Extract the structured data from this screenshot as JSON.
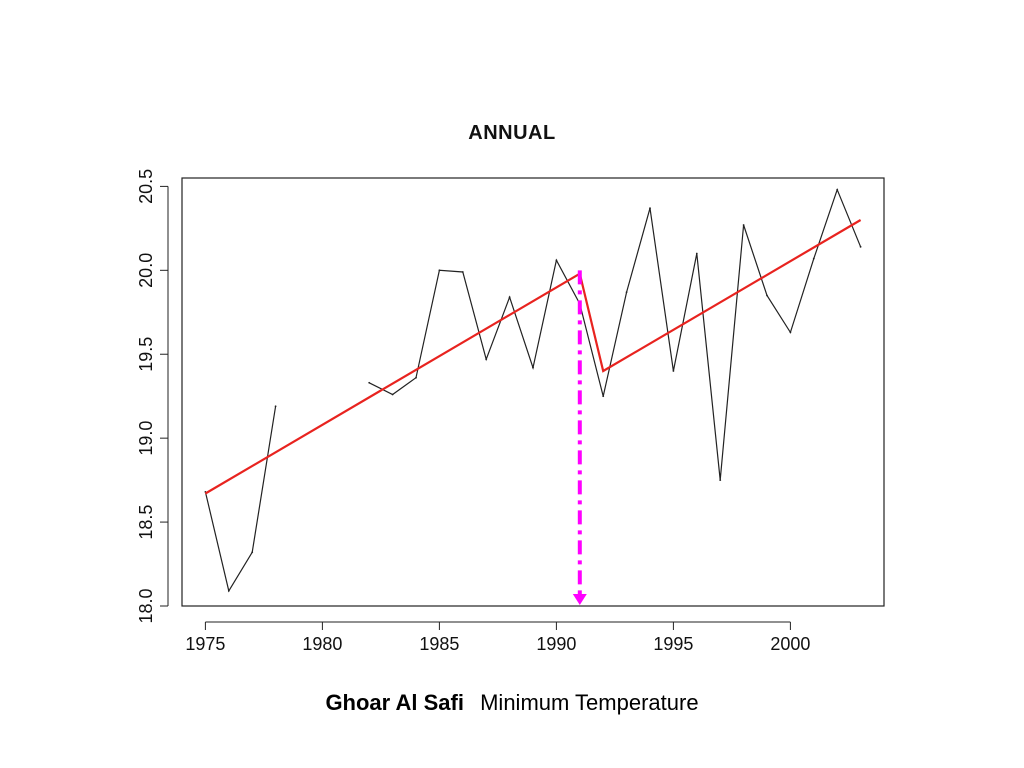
{
  "caption": {
    "station": "Ghoar Al Safi",
    "variable": "Minimum Temperature"
  },
  "chart_data": {
    "type": "line",
    "title": "ANNUAL",
    "xlabel": "",
    "ylabel": "",
    "xlim": [
      1974,
      2004
    ],
    "ylim": [
      18.0,
      20.55
    ],
    "xticks": [
      1975,
      1980,
      1985,
      1990,
      1995,
      2000
    ],
    "yticks": [
      18.0,
      18.5,
      19.0,
      19.5,
      20.0,
      20.5
    ],
    "ytick_labels": [
      "18.0",
      "18.5",
      "19.0",
      "19.5",
      "20.0",
      "20.5"
    ],
    "grid": false,
    "series": [
      {
        "kind": "observed",
        "color": "#222222",
        "x": [
          1975,
          1976,
          1977,
          1978,
          1979,
          1980,
          1981,
          1982,
          1983,
          1984,
          1985,
          1986,
          1987,
          1988,
          1989,
          1990,
          1991,
          1992,
          1993,
          1994,
          1995,
          1996,
          1997,
          1998,
          1999,
          2000,
          2001,
          2002,
          2003
        ],
        "y": [
          18.68,
          18.09,
          18.32,
          19.19,
          null,
          null,
          null,
          19.33,
          19.26,
          19.36,
          20.0,
          19.99,
          19.47,
          19.84,
          19.42,
          20.06,
          19.8,
          19.25,
          19.87,
          20.37,
          19.4,
          20.1,
          18.75,
          20.27,
          19.85,
          19.63,
          20.07,
          20.48,
          20.14
        ]
      },
      {
        "kind": "trend",
        "color": "#e8231f",
        "x": [
          1975,
          1991,
          1992,
          2003
        ],
        "y": [
          18.67,
          19.98,
          19.4,
          20.3
        ]
      }
    ],
    "annotations": [
      {
        "type": "changepoint-arrow",
        "x": 1991,
        "from_y": 20.0,
        "to_y": 18.0,
        "color": "#ff00ff",
        "style": "dash-dot"
      }
    ]
  }
}
